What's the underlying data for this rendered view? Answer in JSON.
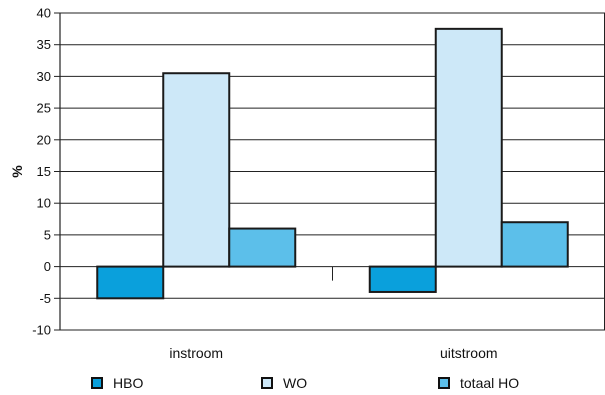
{
  "chart_data": {
    "type": "bar",
    "categories": [
      "instroom",
      "uitstroom"
    ],
    "series": [
      {
        "name": "HBO",
        "values": [
          -5,
          -4
        ],
        "color": "#0aa0dc"
      },
      {
        "name": "WO",
        "values": [
          30.5,
          37.5
        ],
        "color": "#cde8f8"
      },
      {
        "name": "totaal HO",
        "values": [
          6,
          7
        ],
        "color": "#5cbfea"
      }
    ],
    "ylabel": "%",
    "xlabel": "",
    "ylim": [
      -10,
      40
    ],
    "yticks": [
      -10,
      -5,
      0,
      5,
      10,
      15,
      20,
      25,
      30,
      35,
      40
    ],
    "yticks_labels": [
      "-10",
      "-5",
      "0",
      "5",
      "10",
      "15",
      "20",
      "25",
      "30",
      "35",
      "40"
    ],
    "grid": true,
    "legend": "bottom"
  }
}
